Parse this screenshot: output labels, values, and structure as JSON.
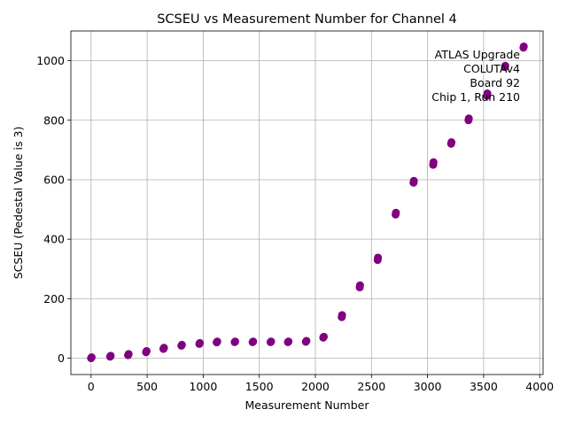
{
  "chart_data": {
    "type": "scatter",
    "title": "SCSEU vs Measurement Number for Channel 4",
    "xlabel": "Measurement Number",
    "ylabel": "SCSEU (Pedestal Value is 3)",
    "xlim": [
      -180,
      4030
    ],
    "ylim": [
      -55,
      1100
    ],
    "xticks": [
      0,
      500,
      1000,
      1500,
      2000,
      2500,
      3000,
      3500,
      4000
    ],
    "yticks": [
      0,
      200,
      400,
      600,
      800,
      1000
    ],
    "grid": true,
    "marker_color": "#800080",
    "annotation": [
      "ATLAS Upgrade",
      "COLUTAv4",
      "Board 92",
      "Chip 1, Run 210"
    ],
    "points": [
      {
        "x": 0,
        "y": 0
      },
      {
        "x": 5,
        "y": 3
      },
      {
        "x": 170,
        "y": 5
      },
      {
        "x": 175,
        "y": 8
      },
      {
        "x": 330,
        "y": 10
      },
      {
        "x": 335,
        "y": 14
      },
      {
        "x": 490,
        "y": 20
      },
      {
        "x": 495,
        "y": 24
      },
      {
        "x": 645,
        "y": 31
      },
      {
        "x": 650,
        "y": 35
      },
      {
        "x": 805,
        "y": 42
      },
      {
        "x": 810,
        "y": 45
      },
      {
        "x": 965,
        "y": 48
      },
      {
        "x": 970,
        "y": 51
      },
      {
        "x": 1120,
        "y": 53
      },
      {
        "x": 1125,
        "y": 56
      },
      {
        "x": 1280,
        "y": 54
      },
      {
        "x": 1285,
        "y": 56
      },
      {
        "x": 1440,
        "y": 54
      },
      {
        "x": 1445,
        "y": 56
      },
      {
        "x": 1600,
        "y": 54
      },
      {
        "x": 1605,
        "y": 56
      },
      {
        "x": 1755,
        "y": 54
      },
      {
        "x": 1760,
        "y": 56
      },
      {
        "x": 1915,
        "y": 55
      },
      {
        "x": 1920,
        "y": 58
      },
      {
        "x": 2070,
        "y": 69
      },
      {
        "x": 2075,
        "y": 72
      },
      {
        "x": 2235,
        "y": 138
      },
      {
        "x": 2238,
        "y": 145
      },
      {
        "x": 2395,
        "y": 238
      },
      {
        "x": 2398,
        "y": 245
      },
      {
        "x": 2555,
        "y": 330
      },
      {
        "x": 2558,
        "y": 338
      },
      {
        "x": 2715,
        "y": 483
      },
      {
        "x": 2718,
        "y": 489
      },
      {
        "x": 2875,
        "y": 590
      },
      {
        "x": 2878,
        "y": 596
      },
      {
        "x": 3050,
        "y": 650
      },
      {
        "x": 3053,
        "y": 659
      },
      {
        "x": 3210,
        "y": 721
      },
      {
        "x": 3213,
        "y": 726
      },
      {
        "x": 3365,
        "y": 800
      },
      {
        "x": 3368,
        "y": 806
      },
      {
        "x": 3530,
        "y": 882
      },
      {
        "x": 3533,
        "y": 890
      },
      {
        "x": 3690,
        "y": 979
      },
      {
        "x": 3693,
        "y": 983
      },
      {
        "x": 3855,
        "y": 1044
      },
      {
        "x": 3858,
        "y": 1048
      }
    ]
  }
}
